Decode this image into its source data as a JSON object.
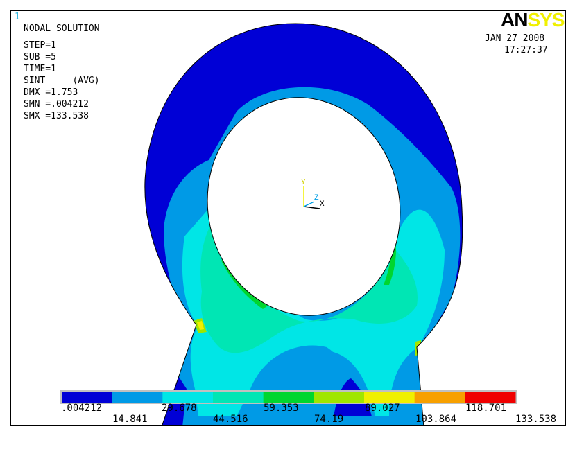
{
  "window": {
    "number": "1"
  },
  "header": {
    "title": "NODAL SOLUTION",
    "lines": [
      "STEP=1",
      "SUB =5",
      "TIME=1",
      "SINT     (AVG)",
      "DMX =1.753",
      "SMN =.004212",
      "SMX =133.538"
    ]
  },
  "logo": {
    "an": "AN",
    "sys": "SYS"
  },
  "timestamp": {
    "date": "JAN 27 2008",
    "time": "17:27:37"
  },
  "triad": {
    "y": "Y",
    "z": "Z",
    "x": "X"
  },
  "legend": {
    "colors": [
      "#0000d6",
      "#009ae6",
      "#00e6e6",
      "#00e6b4",
      "#00d62e",
      "#a0e600",
      "#f0f000",
      "#f7a000",
      "#f00000"
    ],
    "labels_top": [
      ".004212",
      "29.678",
      "59.353",
      "89.027",
      "118.701"
    ],
    "labels_bottom": [
      "14.841",
      "44.516",
      "74.19",
      "103.864",
      "133.538"
    ]
  }
}
